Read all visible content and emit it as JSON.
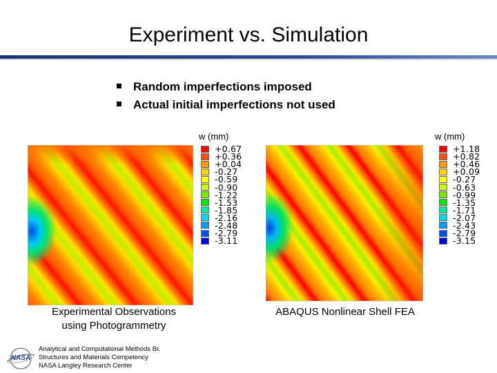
{
  "slide": {
    "title": "Experiment vs. Simulation",
    "bullets": [
      "Random imperfections imposed",
      "Actual initial imperfections not used"
    ]
  },
  "left_panel": {
    "legend_title": "w (mm)",
    "legend_values": [
      "+0.67",
      "+0.36",
      "+0.04",
      "-0.27",
      "-0.59",
      "-0.90",
      "-1.22",
      "-1.53",
      "-1.85",
      "-2.16",
      "-2.48",
      "-2.79",
      "-3.11"
    ],
    "caption_line1": "Experimental Observations",
    "caption_line2": "using Photogrammetry"
  },
  "right_panel": {
    "legend_title": "w (mm)",
    "legend_values": [
      "+1.18",
      "+0.82",
      "+0.46",
      "+0.09",
      "-0.27",
      "-0.63",
      "-0.99",
      "-1.35",
      "-1.71",
      "-2.07",
      "-2.43",
      "-2.79",
      "-3.15"
    ],
    "caption": "ABAQUS Nonlinear Shell FEA"
  },
  "legend_colors": [
    "#ff0000",
    "#ff5000",
    "#ff9a00",
    "#ffd200",
    "#ffff00",
    "#c8f500",
    "#7ae800",
    "#00e200",
    "#00e8a0",
    "#00d8f0",
    "#009cf5",
    "#0050f0",
    "#0000e6"
  ],
  "footer": {
    "line1": "Analytical and Computational Methods Br.",
    "line2": "Structures and Materials Competency",
    "line3": "NASA Langley Research Center",
    "logo_text": "NASA"
  }
}
